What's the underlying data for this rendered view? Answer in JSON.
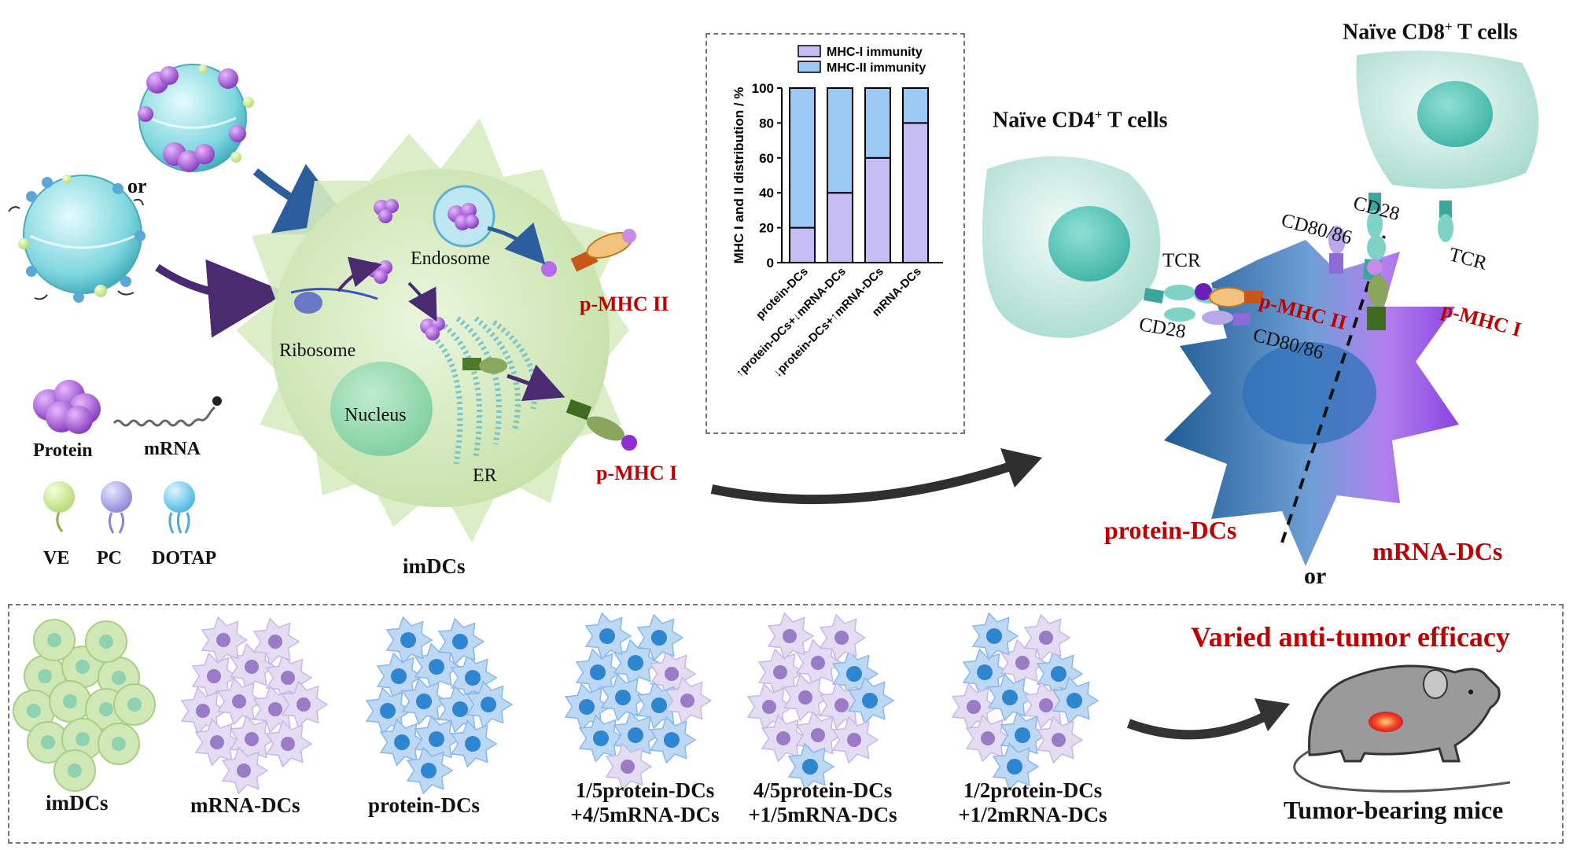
{
  "legend_particles": {
    "protein": "Protein",
    "mrna": "mRNA",
    "ve": "VE",
    "pc": "PC",
    "dotap": "DOTAP"
  },
  "left": {
    "or": "or",
    "endosome": "Endosome",
    "ribosome": "Ribosome",
    "nucleus": "Nucleus",
    "er": "ER",
    "imdcs": "imDCs",
    "pmhc2": "p-MHC II",
    "pmhc1": "p-MHC I"
  },
  "right": {
    "cd4": "Naïve CD4",
    "cd4_sup": "+",
    "cd4_suffix": " T cells",
    "cd8": "Naïve CD8",
    "cd8_sup": "+",
    "cd8_suffix": " T cells",
    "tcr_left": "TCR",
    "cd28_left": "CD28",
    "pmhc2": "p-MHC II",
    "cd80_bottom": "CD80/86",
    "cd28_right": "CD28",
    "cd80_top": "CD80/86",
    "tcr_right": "TCR",
    "pmhc1": "p-MHC I",
    "protein_dcs": "protein-DCs",
    "mrna_dcs": "mRNA-DCs",
    "or": "or"
  },
  "chart_data": {
    "type": "bar",
    "stacked": true,
    "ylabel": "MHC I and II distribution / %",
    "ylim": [
      0,
      100
    ],
    "yticks": [
      0,
      20,
      40,
      60,
      80,
      100
    ],
    "categories": [
      "protein-DCs",
      "↑protein-DCs+↓mRNA-DCs",
      "↓protein-DCs+↑mRNA-DCs",
      "mRNA-DCs"
    ],
    "series": [
      {
        "name": "MHC-I immunity",
        "values": [
          20,
          40,
          60,
          80
        ],
        "color": "#c5bdf3"
      },
      {
        "name": "MHC-II immunity",
        "values": [
          80,
          60,
          40,
          20
        ],
        "color": "#9cc8f6"
      }
    ],
    "legend_position": "top"
  },
  "bottom": {
    "title": "Varied anti-tumor efficacy",
    "groups": [
      {
        "line1": "imDCs",
        "line2": ""
      },
      {
        "line1": "mRNA-DCs",
        "line2": ""
      },
      {
        "line1": "protein-DCs",
        "line2": ""
      },
      {
        "line1": "1/5protein-DCs",
        "line2": "+4/5mRNA-DCs"
      },
      {
        "line1": "4/5protein-DCs",
        "line2": "+1/5mRNA-DCs"
      },
      {
        "line1": "1/2protein-DCs",
        "line2": "+1/2mRNA-DCs"
      }
    ],
    "mice": "Tumor-bearing mice"
  },
  "colors": {
    "red_label": "#c00000",
    "protein_purple": "#a45bd6",
    "dc_cell": "#cfe7b5",
    "protein_dc": "#2f6fa5",
    "mrna_dc": "#a064e6"
  }
}
